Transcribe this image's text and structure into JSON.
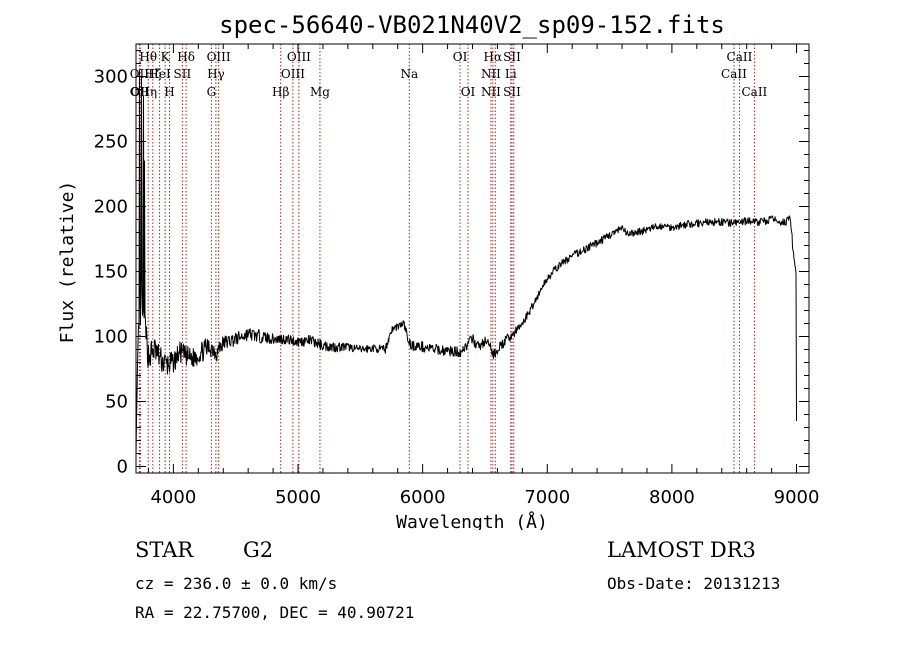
{
  "chart_data": {
    "type": "line",
    "title": "spec-56640-VB021N40V2_sp09-152.fits",
    "xlabel": "Wavelength (Å)",
    "ylabel": "Flux (relative)",
    "xlim": [
      3700,
      9100
    ],
    "ylim": [
      -5,
      325
    ],
    "xticks": [
      4000,
      5000,
      6000,
      7000,
      8000,
      9000
    ],
    "yticks": [
      0,
      50,
      100,
      150,
      200,
      250,
      300
    ],
    "spectrum_anchors": {
      "wavelength": [
        3700,
        3720,
        3740,
        3760,
        3780,
        3800,
        3850,
        3900,
        3950,
        4000,
        4050,
        4100,
        4150,
        4200,
        4250,
        4300,
        4350,
        4400,
        4500,
        4600,
        4700,
        4800,
        4900,
        5000,
        5100,
        5200,
        5300,
        5400,
        5500,
        5600,
        5700,
        5750,
        5800,
        5850,
        5890,
        5920,
        6000,
        6100,
        6200,
        6300,
        6350,
        6400,
        6450,
        6500,
        6550,
        6563,
        6600,
        6650,
        6700,
        6750,
        6800,
        6850,
        6900,
        7000,
        7100,
        7200,
        7300,
        7400,
        7500,
        7600,
        7650,
        7700,
        7800,
        7900,
        8000,
        8100,
        8200,
        8300,
        8400,
        8500,
        8600,
        8700,
        8800,
        8900,
        8950,
        9000
      ],
      "flux": [
        15,
        95,
        130,
        110,
        100,
        85,
        90,
        82,
        78,
        80,
        88,
        85,
        83,
        86,
        90,
        92,
        88,
        95,
        98,
        102,
        100,
        98,
        98,
        96,
        97,
        93,
        92,
        92,
        90,
        91,
        90,
        105,
        108,
        110,
        95,
        93,
        92,
        90,
        89,
        88,
        93,
        98,
        92,
        96,
        92,
        85,
        90,
        95,
        100,
        104,
        110,
        118,
        127,
        145,
        155,
        162,
        167,
        172,
        178,
        183,
        178,
        180,
        182,
        185,
        184,
        186,
        187,
        188,
        188,
        187,
        189,
        188,
        190,
        188,
        190,
        140
      ],
      "noise": [
        8,
        20,
        20,
        15,
        12,
        12,
        10,
        10,
        10,
        8,
        8,
        8,
        8,
        8,
        8,
        8,
        8,
        6,
        5,
        5,
        5,
        4,
        4,
        4,
        4,
        4,
        4,
        3,
        3,
        3,
        3,
        3,
        3,
        3,
        4,
        4,
        4,
        4,
        4,
        4,
        4,
        4,
        4,
        4,
        4,
        4,
        4,
        4,
        4,
        4,
        3,
        3,
        3,
        3,
        3,
        3,
        3,
        3,
        3,
        3,
        3,
        3,
        3,
        3,
        3,
        3,
        3,
        3,
        3,
        3,
        3,
        3,
        3,
        3,
        3,
        6
      ]
    },
    "spikes": [
      {
        "wavelength": 3728,
        "flux": 305
      },
      {
        "wavelength": 3745,
        "flux": 300
      },
      {
        "wavelength": 3760,
        "flux": 285
      },
      {
        "wavelength": 3768,
        "flux": 235
      },
      {
        "wavelength": 9000,
        "flux": 35
      }
    ],
    "lines": [
      {
        "wavelength": 3727,
        "labels": [
          "",
          "OII",
          "OII"
        ]
      },
      {
        "wavelength": 3734,
        "labels": [
          "",
          "",
          "OII"
        ]
      },
      {
        "wavelength": 3798,
        "labels": [
          "Hθ",
          "",
          "Hη"
        ]
      },
      {
        "wavelength": 3835,
        "labels": [
          "",
          "Hζ",
          ""
        ]
      },
      {
        "wavelength": 3889,
        "labels": [
          "",
          "HeI",
          ""
        ]
      },
      {
        "wavelength": 3934,
        "labels": [
          "K",
          "",
          ""
        ]
      },
      {
        "wavelength": 3969,
        "labels": [
          "",
          "",
          "H"
        ]
      },
      {
        "wavelength": 4072,
        "labels": [
          "",
          "SII",
          ""
        ]
      },
      {
        "wavelength": 4102,
        "labels": [
          "Hδ",
          "",
          ""
        ]
      },
      {
        "wavelength": 4305,
        "labels": [
          "",
          "",
          "G"
        ]
      },
      {
        "wavelength": 4341,
        "labels": [
          "",
          "Hγ",
          ""
        ]
      },
      {
        "wavelength": 4363,
        "labels": [
          "OIII",
          "",
          ""
        ]
      },
      {
        "wavelength": 4861,
        "labels": [
          "",
          "",
          "Hβ"
        ]
      },
      {
        "wavelength": 4959,
        "labels": [
          "",
          "OIII",
          ""
        ]
      },
      {
        "wavelength": 5007,
        "labels": [
          "OIII",
          "",
          ""
        ]
      },
      {
        "wavelength": 5176,
        "labels": [
          "",
          "",
          "Mg"
        ]
      },
      {
        "wavelength": 5893,
        "labels": [
          "",
          "Na",
          ""
        ]
      },
      {
        "wavelength": 6300,
        "labels": [
          "OI",
          "",
          ""
        ]
      },
      {
        "wavelength": 6364,
        "labels": [
          "",
          "",
          "OI"
        ]
      },
      {
        "wavelength": 6548,
        "labels": [
          "",
          "NII",
          "NII"
        ]
      },
      {
        "wavelength": 6563,
        "labels": [
          "Hα",
          "",
          ""
        ]
      },
      {
        "wavelength": 6583,
        "labels": [
          "",
          "",
          ""
        ]
      },
      {
        "wavelength": 6707,
        "labels": [
          "",
          "Li",
          ""
        ]
      },
      {
        "wavelength": 6717,
        "labels": [
          "SII",
          "",
          "SII"
        ]
      },
      {
        "wavelength": 6731,
        "labels": [
          "",
          "",
          ""
        ]
      },
      {
        "wavelength": 8498,
        "labels": [
          "",
          "CaII",
          ""
        ]
      },
      {
        "wavelength": 8542,
        "labels": [
          "CaII",
          "",
          ""
        ]
      },
      {
        "wavelength": 8662,
        "labels": [
          "",
          "",
          "CaII"
        ]
      }
    ]
  },
  "footer": {
    "object_class": "STAR",
    "subclass": "G2",
    "survey": "LAMOST DR3",
    "cz": "cz = 236.0 ± 0.0 km/s",
    "obs_date": "Obs-Date: 20131213",
    "coords": "RA =  22.75700, DEC =  40.90721"
  },
  "colors": {
    "line_marker": "#b22222",
    "spectrum": "#000000",
    "axis": "#000000"
  }
}
